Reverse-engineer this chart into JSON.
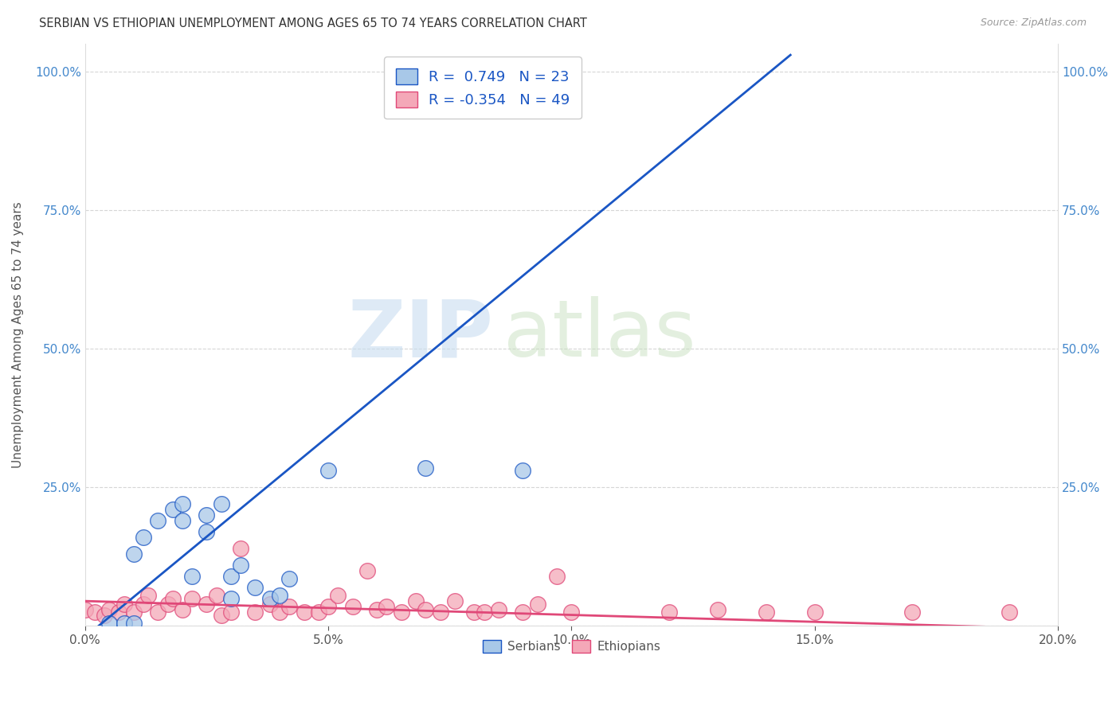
{
  "title": "SERBIAN VS ETHIOPIAN UNEMPLOYMENT AMONG AGES 65 TO 74 YEARS CORRELATION CHART",
  "source": "Source: ZipAtlas.com",
  "ylabel": "Unemployment Among Ages 65 to 74 years",
  "xlim": [
    0.0,
    0.2
  ],
  "ylim": [
    0.0,
    1.05
  ],
  "xtick_labels": [
    "0.0%",
    "5.0%",
    "10.0%",
    "15.0%",
    "20.0%"
  ],
  "xtick_vals": [
    0.0,
    0.05,
    0.1,
    0.15,
    0.2
  ],
  "ytick_vals": [
    0.0,
    0.25,
    0.5,
    0.75,
    1.0
  ],
  "ytick_labels": [
    "",
    "25.0%",
    "50.0%",
    "75.0%",
    "100.0%"
  ],
  "serbian_R": 0.749,
  "serbian_N": 23,
  "ethiopian_R": -0.354,
  "ethiopian_N": 49,
  "serbian_color": "#a8c8e8",
  "ethiopian_color": "#f4a8b8",
  "serbian_line_color": "#1a56c4",
  "ethiopian_line_color": "#e04878",
  "watermark_zip": "ZIP",
  "watermark_atlas": "atlas",
  "serbian_line_x0": 0.0,
  "serbian_line_y0": -0.02,
  "serbian_line_x1": 0.145,
  "serbian_line_y1": 1.03,
  "ethiopian_line_x0": 0.0,
  "ethiopian_line_y0": 0.045,
  "ethiopian_line_x1": 0.2,
  "ethiopian_line_y1": -0.005,
  "serbian_x": [
    0.005,
    0.008,
    0.01,
    0.01,
    0.012,
    0.015,
    0.018,
    0.02,
    0.02,
    0.022,
    0.025,
    0.025,
    0.028,
    0.03,
    0.03,
    0.032,
    0.035,
    0.038,
    0.04,
    0.042,
    0.05,
    0.07,
    0.09
  ],
  "serbian_y": [
    0.005,
    0.005,
    0.005,
    0.13,
    0.16,
    0.19,
    0.21,
    0.19,
    0.22,
    0.09,
    0.17,
    0.2,
    0.22,
    0.09,
    0.05,
    0.11,
    0.07,
    0.05,
    0.055,
    0.085,
    0.28,
    0.285,
    0.28
  ],
  "ethiopian_x": [
    0.0,
    0.002,
    0.004,
    0.005,
    0.007,
    0.008,
    0.01,
    0.012,
    0.013,
    0.015,
    0.017,
    0.018,
    0.02,
    0.022,
    0.025,
    0.027,
    0.028,
    0.03,
    0.032,
    0.035,
    0.038,
    0.04,
    0.042,
    0.045,
    0.048,
    0.05,
    0.052,
    0.055,
    0.058,
    0.06,
    0.062,
    0.065,
    0.068,
    0.07,
    0.073,
    0.076,
    0.08,
    0.082,
    0.085,
    0.09,
    0.093,
    0.097,
    0.1,
    0.12,
    0.13,
    0.14,
    0.15,
    0.17,
    0.19
  ],
  "ethiopian_y": [
    0.03,
    0.025,
    0.02,
    0.03,
    0.025,
    0.04,
    0.025,
    0.04,
    0.055,
    0.025,
    0.04,
    0.05,
    0.03,
    0.05,
    0.04,
    0.055,
    0.02,
    0.025,
    0.14,
    0.025,
    0.04,
    0.025,
    0.035,
    0.025,
    0.025,
    0.035,
    0.055,
    0.035,
    0.1,
    0.03,
    0.035,
    0.025,
    0.045,
    0.03,
    0.025,
    0.045,
    0.025,
    0.025,
    0.03,
    0.025,
    0.04,
    0.09,
    0.025,
    0.025,
    0.03,
    0.025,
    0.025,
    0.025,
    0.025
  ]
}
